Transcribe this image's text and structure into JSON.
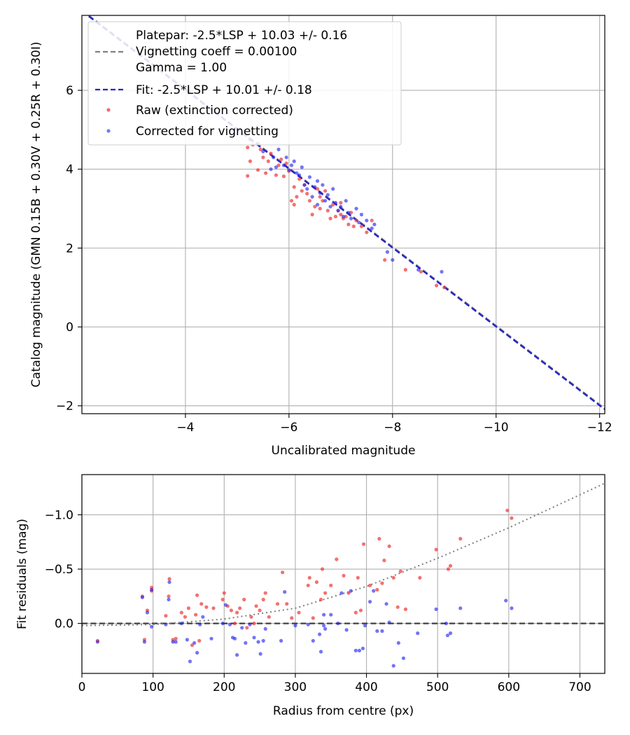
{
  "chart_data": [
    {
      "type": "scatter",
      "xlabel": "Uncalibrated magnitude",
      "ylabel": "Catalog magnitude (GMN 0.15B + 0.30V + 0.25R + 0.30I)",
      "xlim": [
        -2.0,
        -12.1
      ],
      "ylim": [
        7.9,
        -2.2
      ],
      "x_ticks": [
        -4,
        -6,
        -8,
        -10,
        -12
      ],
      "x_tick_labels": [
        "−4",
        "−6",
        "−8",
        "−10",
        "−12"
      ],
      "y_ticks": [
        -2,
        0,
        2,
        4,
        6
      ],
      "y_tick_labels": [
        "−2",
        "0",
        "2",
        "4",
        "6"
      ],
      "grid": true,
      "legend_position": "top-left",
      "legend": {
        "platepar_line1": "Platepar: -2.5*LSP + 10.03 +/- 0.16",
        "platepar_line2": "Vignetting coeff = 0.00100",
        "platepar_line3": "Gamma = 1.00",
        "fit": "Fit: -2.5*LSP + 10.01 +/- 0.18",
        "raw": "Raw (extinction corrected)",
        "corrected": "Corrected for vignetting"
      },
      "lines": [
        {
          "name": "Platepar",
          "style": "dashed",
          "color": "#808080",
          "slope": 1,
          "intercept": 10.03
        },
        {
          "name": "Fit",
          "style": "dashed",
          "color": "#2525cc",
          "slope": 1,
          "intercept": 10.01
        }
      ],
      "series": [
        {
          "name": "Raw (extinction corrected)",
          "color": "#ef3a3a",
          "points": [
            [
              -5.2,
              3.83
            ],
            [
              -5.25,
              4.2
            ],
            [
              -5.2,
              4.55
            ],
            [
              -5.3,
              4.62
            ],
            [
              -5.4,
              3.98
            ],
            [
              -5.5,
              4.3
            ],
            [
              -5.45,
              4.5
            ],
            [
              -5.55,
              3.9
            ],
            [
              -5.6,
              4.2
            ],
            [
              -5.65,
              4.4
            ],
            [
              -5.7,
              4.85
            ],
            [
              -5.75,
              3.85
            ],
            [
              -5.8,
              4.1
            ],
            [
              -5.85,
              4.25
            ],
            [
              -5.9,
              3.82
            ],
            [
              -5.95,
              4.15
            ],
            [
              -6.0,
              3.95
            ],
            [
              -6.1,
              3.55
            ],
            [
              -6.05,
              3.2
            ],
            [
              -6.1,
              3.1
            ],
            [
              -6.15,
              3.3
            ],
            [
              -6.2,
              3.75
            ],
            [
              -6.3,
              3.6
            ],
            [
              -6.35,
              3.38
            ],
            [
              -6.4,
              3.2
            ],
            [
              -6.45,
              2.85
            ],
            [
              -6.5,
              3.05
            ],
            [
              -6.55,
              3.5
            ],
            [
              -6.6,
              3.3
            ],
            [
              -6.65,
              3.2
            ],
            [
              -6.7,
              3.45
            ],
            [
              -6.75,
              2.95
            ],
            [
              -6.8,
              2.75
            ],
            [
              -6.85,
              3.1
            ],
            [
              -6.9,
              2.8
            ],
            [
              -6.95,
              2.95
            ],
            [
              -7.0,
              3.15
            ],
            [
              -7.05,
              2.75
            ],
            [
              -7.1,
              2.8
            ],
            [
              -7.15,
              2.6
            ],
            [
              -7.2,
              2.9
            ],
            [
              -7.25,
              2.55
            ],
            [
              -7.3,
              2.7
            ],
            [
              -7.4,
              2.55
            ],
            [
              -7.5,
              2.4
            ],
            [
              -7.6,
              2.7
            ],
            [
              -7.85,
              1.7
            ],
            [
              -8.25,
              1.45
            ],
            [
              -8.55,
              1.4
            ],
            [
              -8.85,
              1.05
            ],
            [
              -9.0,
              1.0
            ],
            [
              -6.25,
              3.45
            ],
            [
              -6.6,
              3.0
            ],
            [
              -7.0,
              2.85
            ]
          ]
        },
        {
          "name": "Corrected for vignetting",
          "color": "#1e1ef0",
          "points": [
            [
              -5.25,
              4.75
            ],
            [
              -5.5,
              4.45
            ],
            [
              -5.7,
              4.3
            ],
            [
              -5.8,
              4.5
            ],
            [
              -5.9,
              4.1
            ],
            [
              -5.95,
              4.3
            ],
            [
              -6.0,
              3.98
            ],
            [
              -6.05,
              4.1
            ],
            [
              -6.1,
              4.2
            ],
            [
              -6.15,
              3.9
            ],
            [
              -6.2,
              3.85
            ],
            [
              -6.25,
              4.05
            ],
            [
              -6.3,
              3.6
            ],
            [
              -6.35,
              3.5
            ],
            [
              -6.4,
              3.8
            ],
            [
              -6.45,
              3.3
            ],
            [
              -6.5,
              3.55
            ],
            [
              -6.55,
              3.7
            ],
            [
              -6.6,
              3.4
            ],
            [
              -6.65,
              3.6
            ],
            [
              -6.7,
              3.2
            ],
            [
              -6.75,
              3.35
            ],
            [
              -6.8,
              3.05
            ],
            [
              -6.85,
              3.5
            ],
            [
              -6.9,
              3.15
            ],
            [
              -6.95,
              2.95
            ],
            [
              -7.0,
              3.05
            ],
            [
              -7.05,
              2.8
            ],
            [
              -7.1,
              3.2
            ],
            [
              -7.15,
              2.9
            ],
            [
              -7.2,
              2.75
            ],
            [
              -7.3,
              3.0
            ],
            [
              -7.35,
              2.65
            ],
            [
              -7.4,
              2.85
            ],
            [
              -7.5,
              2.7
            ],
            [
              -7.6,
              2.5
            ],
            [
              -7.65,
              2.6
            ],
            [
              -7.9,
              1.9
            ],
            [
              -8.0,
              1.7
            ],
            [
              -8.5,
              1.45
            ],
            [
              -8.95,
              1.4
            ],
            [
              -5.4,
              4.65
            ],
            [
              -5.65,
              4.0
            ],
            [
              -5.75,
              4.05
            ],
            [
              -6.55,
              3.1
            ]
          ]
        }
      ]
    },
    {
      "type": "scatter",
      "xlabel": "Radius from centre (px)",
      "ylabel": "Fit residuals (mag)",
      "xlim": [
        0,
        735
      ],
      "ylim": [
        -1.37,
        0.46
      ],
      "x_ticks": [
        0,
        100,
        200,
        300,
        400,
        500,
        600,
        700
      ],
      "x_tick_labels": [
        "0",
        "100",
        "200",
        "300",
        "400",
        "500",
        "600",
        "700"
      ],
      "y_ticks": [
        0.0,
        -0.5,
        -1.0
      ],
      "y_tick_labels": [
        "0.0",
        "−0.5",
        "−1.0"
      ],
      "grid": true,
      "lines": [
        {
          "name": "zero",
          "style": "dashed",
          "color": "#404040",
          "points": [
            [
              0,
              0
            ],
            [
              735,
              0
            ]
          ]
        },
        {
          "name": "vignetting model",
          "style": "dotted",
          "color": "#808080",
          "points": [
            [
              0,
              0.02
            ],
            [
              100,
              0.01
            ],
            [
              200,
              -0.04
            ],
            [
              300,
              -0.14
            ],
            [
              400,
              -0.34
            ],
            [
              500,
              -0.6
            ],
            [
              600,
              -0.88
            ],
            [
              735,
              -1.29
            ]
          ]
        }
      ],
      "series": [
        {
          "name": "Raw",
          "color": "#ef3a3a",
          "points": [
            [
              22,
              0.16
            ],
            [
              85,
              -0.25
            ],
            [
              88,
              0.15
            ],
            [
              92,
              -0.12
            ],
            [
              98,
              -0.3
            ],
            [
              98,
              -0.33
            ],
            [
              118,
              -0.07
            ],
            [
              122,
              -0.25
            ],
            [
              123,
              -0.41
            ],
            [
              128,
              0.15
            ],
            [
              132,
              0.14
            ],
            [
              140,
              -0.1
            ],
            [
              145,
              -0.06
            ],
            [
              150,
              -0.14
            ],
            [
              155,
              0.2
            ],
            [
              160,
              -0.08
            ],
            [
              162,
              -0.26
            ],
            [
              165,
              0.16
            ],
            [
              168,
              -0.18
            ],
            [
              175,
              -0.15
            ],
            [
              185,
              -0.14
            ],
            [
              198,
              -0.22
            ],
            [
              200,
              -0.28
            ],
            [
              205,
              -0.16
            ],
            [
              210,
              -0.12
            ],
            [
              215,
              0.0
            ],
            [
              218,
              -0.1
            ],
            [
              222,
              -0.14
            ],
            [
              228,
              -0.22
            ],
            [
              232,
              0.04
            ],
            [
              238,
              -0.06
            ],
            [
              242,
              0.0
            ],
            [
              245,
              -0.16
            ],
            [
              250,
              -0.12
            ],
            [
              255,
              -0.22
            ],
            [
              258,
              -0.28
            ],
            [
              263,
              -0.06
            ],
            [
              275,
              -0.18
            ],
            [
              282,
              -0.47
            ],
            [
              288,
              -0.18
            ],
            [
              295,
              -0.05
            ],
            [
              305,
              -0.1
            ],
            [
              318,
              -0.35
            ],
            [
              320,
              -0.42
            ],
            [
              325,
              -0.05
            ],
            [
              330,
              -0.38
            ],
            [
              336,
              -0.22
            ],
            [
              338,
              -0.5
            ],
            [
              342,
              -0.28
            ],
            [
              350,
              -0.35
            ],
            [
              358,
              -0.59
            ],
            [
              368,
              -0.44
            ],
            [
              375,
              -0.28
            ],
            [
              385,
              -0.1
            ],
            [
              388,
              -0.42
            ],
            [
              392,
              -0.12
            ],
            [
              396,
              -0.73
            ],
            [
              405,
              -0.35
            ],
            [
              415,
              -0.31
            ],
            [
              418,
              -0.78
            ],
            [
              422,
              -0.37
            ],
            [
              425,
              -0.58
            ],
            [
              432,
              -0.71
            ],
            [
              438,
              -0.42
            ],
            [
              444,
              -0.15
            ],
            [
              448,
              -0.48
            ],
            [
              455,
              -0.13
            ],
            [
              475,
              -0.42
            ],
            [
              498,
              -0.68
            ],
            [
              515,
              -0.5
            ],
            [
              518,
              -0.53
            ],
            [
              532,
              -0.78
            ],
            [
              598,
              -1.04
            ],
            [
              604,
              -0.97
            ]
          ]
        },
        {
          "name": "Corrected",
          "color": "#1e1ef0",
          "points": [
            [
              22,
              0.17
            ],
            [
              85,
              -0.24
            ],
            [
              88,
              0.17
            ],
            [
              92,
              -0.1
            ],
            [
              98,
              0.03
            ],
            [
              98,
              -0.31
            ],
            [
              118,
              0.01
            ],
            [
              122,
              -0.22
            ],
            [
              123,
              -0.38
            ],
            [
              128,
              0.17
            ],
            [
              132,
              0.17
            ],
            [
              140,
              0.0
            ],
            [
              148,
              0.15
            ],
            [
              152,
              0.35
            ],
            [
              158,
              0.18
            ],
            [
              162,
              0.27
            ],
            [
              166,
              0.01
            ],
            [
              170,
              -0.06
            ],
            [
              182,
              0.14
            ],
            [
              198,
              0.0
            ],
            [
              202,
              -0.17
            ],
            [
              208,
              0.01
            ],
            [
              212,
              0.13
            ],
            [
              215,
              0.14
            ],
            [
              218,
              0.29
            ],
            [
              225,
              0.04
            ],
            [
              230,
              0.18
            ],
            [
              236,
              0.01
            ],
            [
              242,
              0.13
            ],
            [
              248,
              0.17
            ],
            [
              251,
              0.28
            ],
            [
              255,
              0.16
            ],
            [
              258,
              0.05
            ],
            [
              280,
              0.16
            ],
            [
              285,
              -0.29
            ],
            [
              300,
              0.02
            ],
            [
              318,
              0.01
            ],
            [
              325,
              0.16
            ],
            [
              334,
              0.1
            ],
            [
              336,
              0.26
            ],
            [
              340,
              -0.08
            ],
            [
              342,
              0.05
            ],
            [
              350,
              -0.08
            ],
            [
              360,
              0.0
            ],
            [
              372,
              0.06
            ],
            [
              378,
              -0.3
            ],
            [
              385,
              0.25
            ],
            [
              390,
              0.25
            ],
            [
              395,
              0.23
            ],
            [
              398,
              0.02
            ],
            [
              405,
              -0.2
            ],
            [
              410,
              -0.3
            ],
            [
              415,
              0.07
            ],
            [
              422,
              0.07
            ],
            [
              428,
              -0.18
            ],
            [
              432,
              -0.01
            ],
            [
              438,
              0.39
            ],
            [
              445,
              0.18
            ],
            [
              452,
              0.32
            ],
            [
              472,
              0.09
            ],
            [
              498,
              -0.13
            ],
            [
              512,
              0.0
            ],
            [
              514,
              0.11
            ],
            [
              518,
              0.09
            ],
            [
              532,
              -0.14
            ],
            [
              596,
              -0.21
            ],
            [
              604,
              -0.14
            ],
            [
              340,
              0.02
            ],
            [
              365,
              -0.28
            ]
          ]
        }
      ]
    }
  ]
}
